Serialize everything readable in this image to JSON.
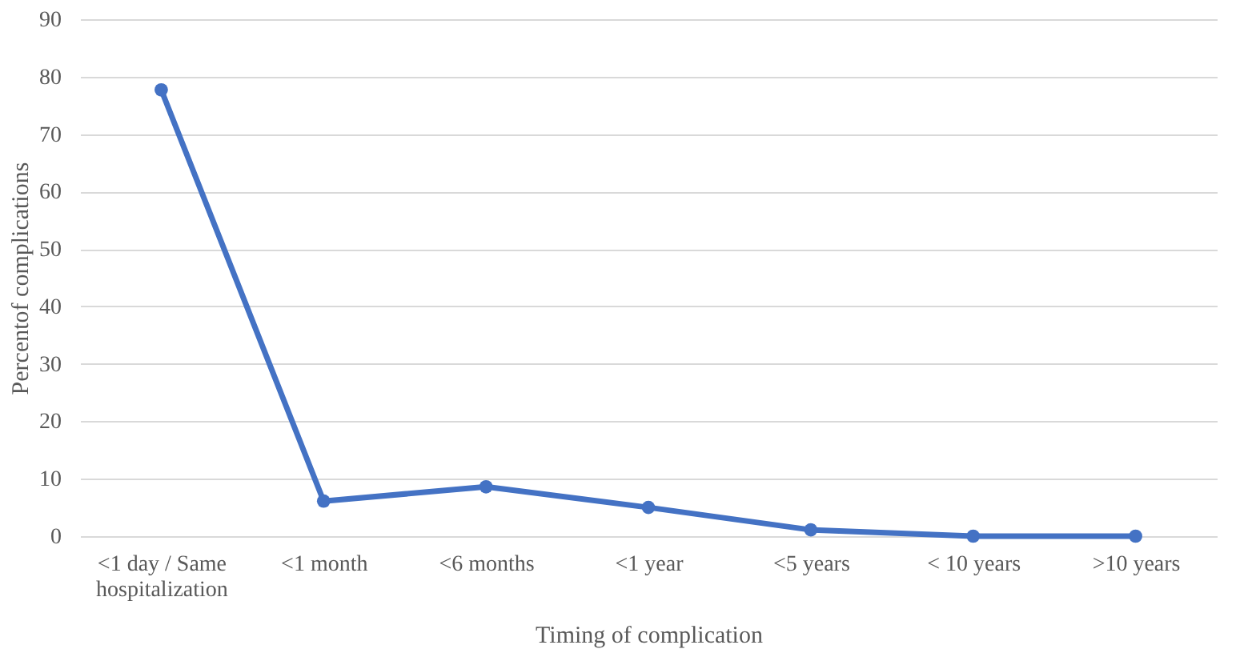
{
  "chart_data": {
    "type": "line",
    "xlabel": "Timing of complication",
    "ylabel": "Percentof complications",
    "categories": [
      "<1 day / Same hospitalization",
      "<1 month",
      "<6 months",
      "<1 year",
      "<5 years",
      "< 10 years",
      ">10 years"
    ],
    "series": [
      {
        "color": "#4472c4",
        "values": [
          77.7,
          6.1,
          8.6,
          5.0,
          1.1,
          0,
          0
        ]
      }
    ],
    "ylim": [
      0,
      90
    ],
    "yticks": [
      0,
      10,
      20,
      30,
      40,
      50,
      60,
      70,
      80,
      90
    ],
    "grid": "y",
    "marker": "circle",
    "line_style": "solid"
  }
}
